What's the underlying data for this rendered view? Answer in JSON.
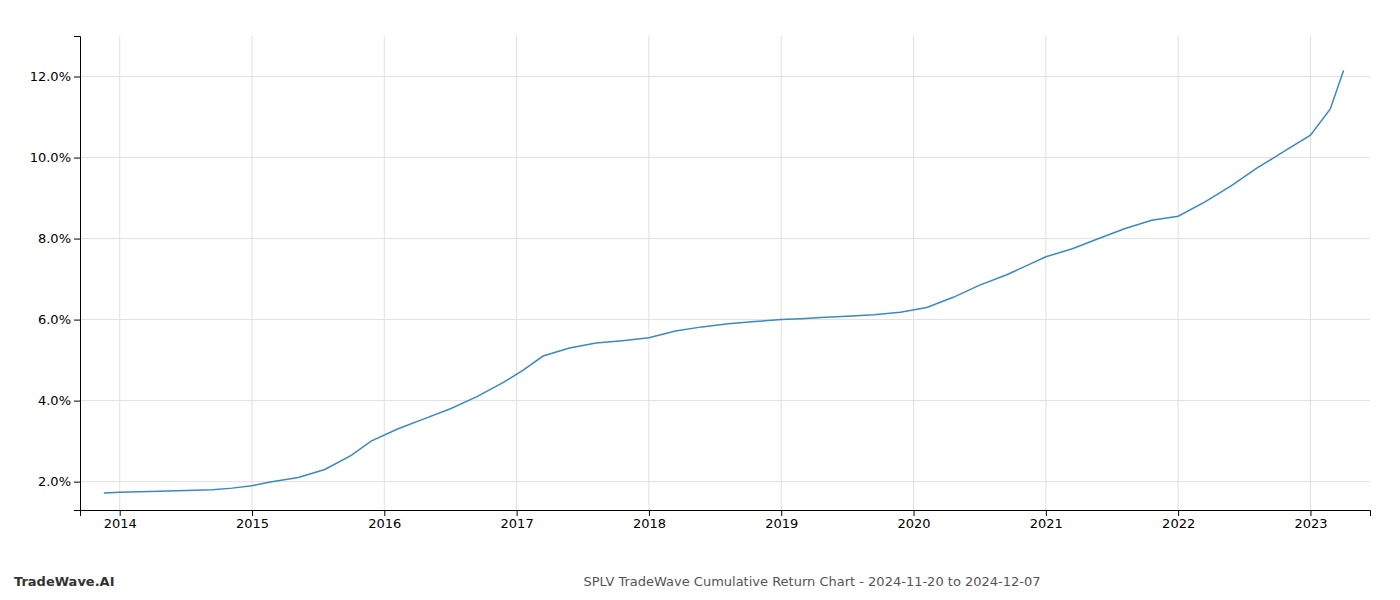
{
  "chart_data": {
    "type": "line",
    "title": "SPLV TradeWave Cumulative Return Chart - 2024-11-20 to 2024-12-07",
    "annotations": [
      "TradeWave.AI"
    ],
    "x": [
      2013.88,
      2014.0,
      2014.15,
      2014.3,
      2014.5,
      2014.7,
      2014.85,
      2015.0,
      2015.15,
      2015.35,
      2015.55,
      2015.75,
      2015.9,
      2016.1,
      2016.3,
      2016.5,
      2016.7,
      2016.9,
      2017.05,
      2017.2,
      2017.4,
      2017.6,
      2017.8,
      2018.0,
      2018.2,
      2018.4,
      2018.6,
      2018.8,
      2019.0,
      2019.15,
      2019.3,
      2019.5,
      2019.7,
      2019.9,
      2020.1,
      2020.3,
      2020.5,
      2020.7,
      2020.9,
      2021.0,
      2021.2,
      2021.4,
      2021.6,
      2021.8,
      2022.0,
      2022.2,
      2022.4,
      2022.6,
      2022.8,
      2023.0,
      2023.15,
      2023.25
    ],
    "values": [
      1.72,
      1.74,
      1.75,
      1.76,
      1.78,
      1.8,
      1.84,
      1.9,
      2.0,
      2.1,
      2.3,
      2.65,
      3.0,
      3.3,
      3.55,
      3.8,
      4.1,
      4.45,
      4.75,
      5.1,
      5.3,
      5.42,
      5.48,
      5.55,
      5.72,
      5.82,
      5.9,
      5.95,
      6.0,
      6.02,
      6.05,
      6.08,
      6.12,
      6.18,
      6.3,
      6.55,
      6.85,
      7.1,
      7.4,
      7.55,
      7.75,
      8.0,
      8.25,
      8.45,
      8.55,
      8.9,
      9.3,
      9.75,
      10.15,
      10.55,
      11.2,
      12.15
    ],
    "color": "#3a8abf",
    "xlim": [
      2013.7,
      2023.45
    ],
    "ylim": [
      1.3,
      13.0
    ],
    "xticks": [
      2014,
      2015,
      2016,
      2017,
      2018,
      2019,
      2020,
      2021,
      2022,
      2023
    ],
    "yticks": [
      {
        "value": 2.0,
        "label": "2.0%"
      },
      {
        "value": 4.0,
        "label": "4.0%"
      },
      {
        "value": 6.0,
        "label": "6.0%"
      },
      {
        "value": 8.0,
        "label": "8.0%"
      },
      {
        "value": 10.0,
        "label": "10.0%"
      },
      {
        "value": 12.0,
        "label": "12.0%"
      }
    ],
    "grid": true
  }
}
